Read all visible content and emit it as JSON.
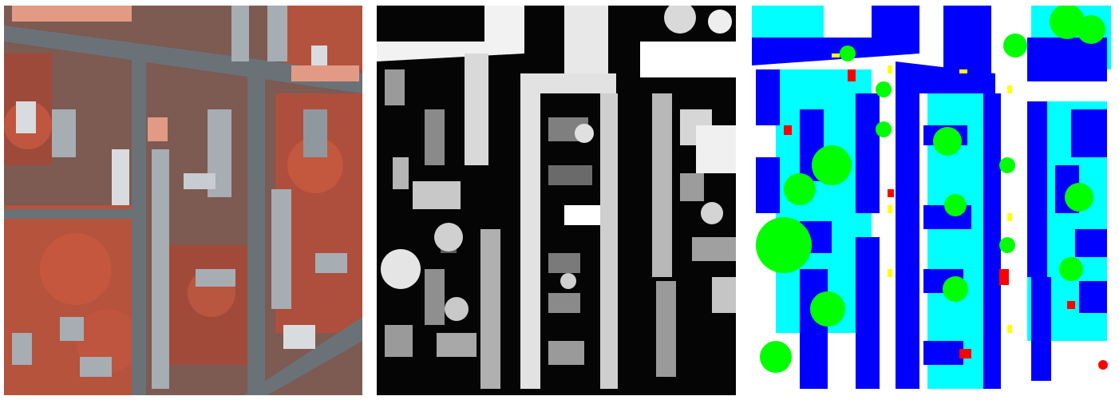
{
  "figure": {
    "panels": [
      {
        "id": "irrg",
        "kind": "false-color-infrared-aerial-image"
      },
      {
        "id": "dsm",
        "kind": "grayscale-height-map"
      },
      {
        "id": "label",
        "kind": "semantic-segmentation-ground-truth"
      }
    ],
    "class_colors": {
      "impervious_surfaces": "#ffffff",
      "building": "#0000ff",
      "low_vegetation": "#00ffff",
      "tree": "#00ff00",
      "car": "#ffff00",
      "clutter": "#ff0000"
    },
    "irrg_colors": {
      "vegetation": "#c0503c",
      "road": "#6a7278",
      "roof": "#a6adb3",
      "roof_light": "#d9dcde",
      "roof_salmon": "#e39a84"
    }
  }
}
